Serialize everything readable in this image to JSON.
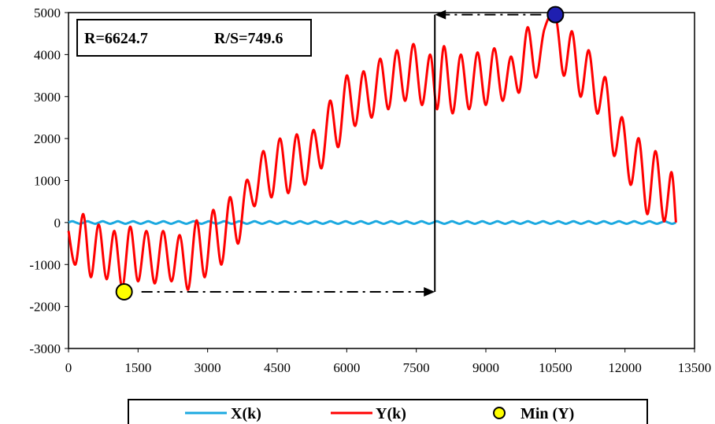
{
  "chart_data": {
    "type": "line",
    "title": "",
    "xlabel": "",
    "ylabel": "",
    "xlim": [
      0,
      13500
    ],
    "ylim": [
      -3000,
      5000
    ],
    "x_ticks": [
      0,
      1500,
      3000,
      4500,
      6000,
      7500,
      9000,
      10500,
      12000,
      13500
    ],
    "y_ticks": [
      -3000,
      -2000,
      -1000,
      0,
      1000,
      2000,
      3000,
      4000,
      5000
    ],
    "grid": false,
    "legend_position": "bottom",
    "annotation": {
      "r_label": "R=6624.7",
      "rs_label": "R/S=749.6"
    },
    "series": [
      {
        "name": "X(k)",
        "color": "#1ca9e0",
        "x": [
          0,
          13100
        ],
        "y": [
          0,
          0
        ],
        "note_oscillation_amplitude": 30
      },
      {
        "name": "Y(k)",
        "color": "#ff0000",
        "x": [
          0,
          150,
          320,
          480,
          650,
          820,
          990,
          1160,
          1330,
          1500,
          1680,
          1860,
          2040,
          2220,
          2400,
          2580,
          2760,
          2940,
          3120,
          3300,
          3480,
          3660,
          3840,
          4020,
          4200,
          4380,
          4560,
          4740,
          4920,
          5100,
          5280,
          5460,
          5640,
          5820,
          6000,
          6180,
          6360,
          6540,
          6720,
          6900,
          7080,
          7260,
          7440,
          7620,
          7800,
          7950,
          8100,
          8280,
          8460,
          8640,
          8820,
          9000,
          9180,
          9360,
          9540,
          9720,
          9900,
          10080,
          10260,
          10500,
          10680,
          10860,
          11040,
          11220,
          11400,
          11580,
          11760,
          11940,
          12120,
          12300,
          12480,
          12660,
          12840,
          13000,
          13100
        ],
        "y": [
          -200,
          -1000,
          200,
          -1300,
          -50,
          -1350,
          -200,
          -1550,
          -100,
          -1400,
          -200,
          -1450,
          -200,
          -1400,
          -300,
          -1600,
          50,
          -1300,
          300,
          -1000,
          600,
          -500,
          1000,
          400,
          1700,
          600,
          2000,
          700,
          2100,
          900,
          2200,
          1300,
          2900,
          1800,
          3500,
          2300,
          3600,
          2500,
          3900,
          2700,
          4100,
          2900,
          4250,
          2800,
          4000,
          2700,
          4200,
          2600,
          4000,
          2700,
          4050,
          2800,
          4150,
          2900,
          3950,
          3100,
          4650,
          3450,
          4600,
          4940,
          3500,
          4550,
          3000,
          4100,
          2600,
          3450,
          1600,
          2500,
          900,
          2000,
          200,
          1700,
          30,
          1200,
          0
        ]
      }
    ],
    "min_point": {
      "name": "Min (Y)",
      "x": 1200,
      "y": -1650,
      "color": "#ffff00"
    },
    "max_point": {
      "x": 10500,
      "y": 4950,
      "color": "#1f1fb0"
    },
    "range_marker": {
      "x": 7900,
      "y_low": -1650,
      "y_high": 4950
    },
    "legend": [
      {
        "label": "X(k)",
        "kind": "line",
        "color": "#1ca9e0"
      },
      {
        "label": "Y(k)",
        "kind": "line",
        "color": "#ff0000"
      },
      {
        "label": "Min (Y)",
        "kind": "marker",
        "color": "#ffff00"
      }
    ]
  }
}
